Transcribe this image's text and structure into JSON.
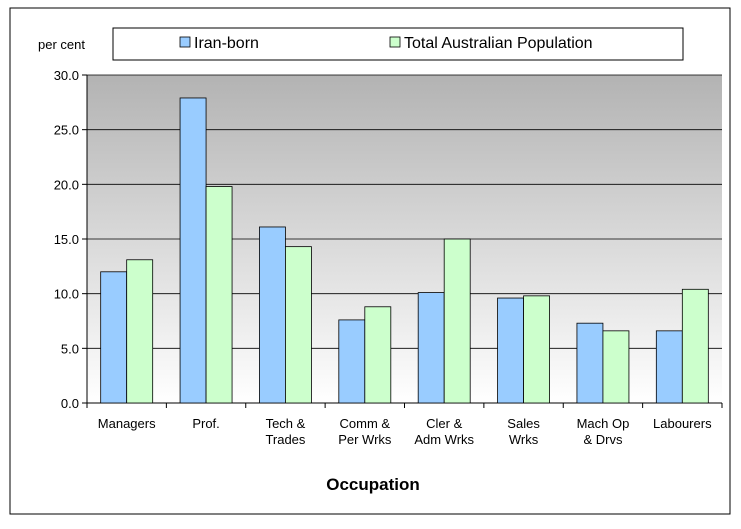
{
  "chart_data": {
    "type": "bar",
    "y_label": "per cent",
    "x_label": "Occupation",
    "categories": [
      "Managers",
      "Prof.",
      "Tech &\nTrades",
      "Comm &\nPer Wrks",
      "Cler &\nAdm Wrks",
      "Sales\nWrks",
      "Mach Op\n& Drvs",
      "Labourers"
    ],
    "series": [
      {
        "name": "Iran-born",
        "color": "#99ccff",
        "values": [
          12.0,
          27.9,
          16.1,
          7.6,
          10.1,
          9.6,
          7.3,
          6.6
        ]
      },
      {
        "name": "Total Australian Population",
        "color": "#ccffcc",
        "values": [
          13.1,
          19.8,
          14.3,
          8.8,
          15.0,
          9.8,
          6.6,
          10.4
        ]
      }
    ],
    "ylim": [
      0,
      30
    ],
    "yticks": [
      {
        "value": 0,
        "label": "0.0"
      },
      {
        "value": 5,
        "label": "5.0"
      },
      {
        "value": 10,
        "label": "10.0"
      },
      {
        "value": 15,
        "label": "15.0"
      },
      {
        "value": 20,
        "label": "20.0"
      },
      {
        "value": 25,
        "label": "25.0"
      },
      {
        "value": 30,
        "label": "30.0"
      }
    ],
    "grid": true,
    "legend": "top"
  }
}
